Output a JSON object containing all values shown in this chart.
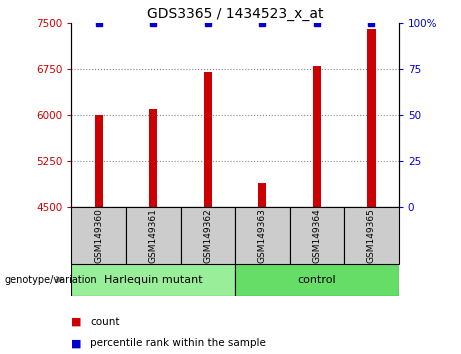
{
  "title": "GDS3365 / 1434523_x_at",
  "samples": [
    "GSM149360",
    "GSM149361",
    "GSM149362",
    "GSM149363",
    "GSM149364",
    "GSM149365"
  ],
  "counts": [
    6000,
    6100,
    6700,
    4900,
    6800,
    7400
  ],
  "ylim_left": [
    4500,
    7500
  ],
  "yticks_left": [
    4500,
    5250,
    6000,
    6750,
    7500
  ],
  "yticks_right": [
    0,
    25,
    50,
    75,
    100
  ],
  "ylim_right": [
    0,
    100
  ],
  "bar_color": "#cc0000",
  "percentile_color": "#0000cc",
  "grid_color": "#888888",
  "bg_color": "#cccccc",
  "group1_label": "Harlequin mutant",
  "group2_label": "control",
  "group1_color": "#99ee99",
  "group2_color": "#66dd66",
  "group1_samples": [
    0,
    1,
    2
  ],
  "group2_samples": [
    3,
    4,
    5
  ],
  "genotype_label": "genotype/variation",
  "legend_count_label": "count",
  "legend_percentile_label": "percentile rank within the sample",
  "bar_width": 0.15
}
